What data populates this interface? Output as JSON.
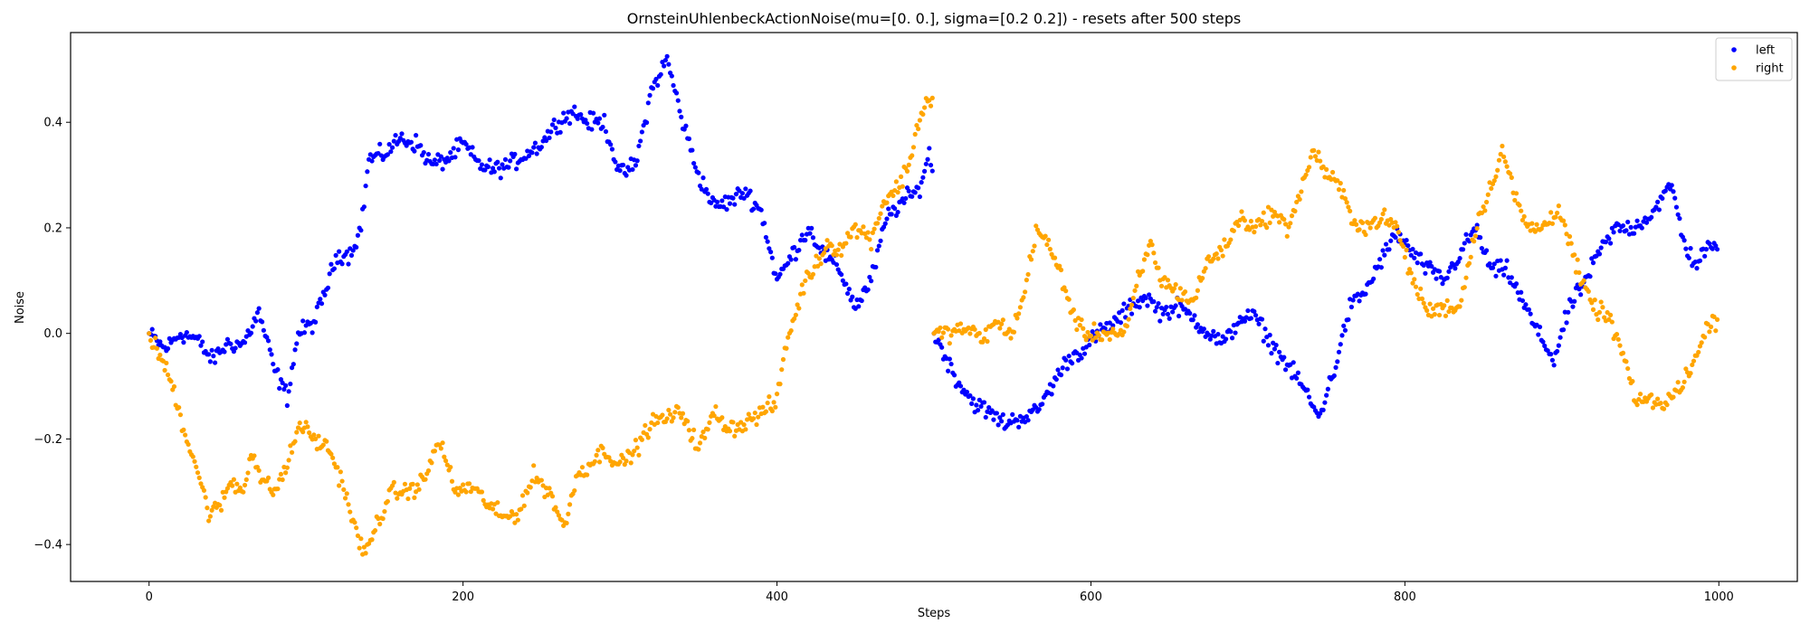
{
  "chart_data": {
    "type": "scatter",
    "title": "OrnsteinUhlenbeckActionNoise(mu=[0. 0.], sigma=[0.2 0.2]) - resets after 500 steps",
    "xlabel": "Steps",
    "ylabel": "Noise",
    "xlim": [
      -50,
      1050
    ],
    "ylim": [
      -0.47,
      0.57
    ],
    "xticks": [
      0,
      200,
      400,
      600,
      800,
      1000
    ],
    "yticks": [
      -0.4,
      -0.2,
      0.0,
      0.2,
      0.4
    ],
    "ytick_labels": [
      "−0.4",
      "−0.2",
      "0.0",
      "0.2",
      "0.4"
    ],
    "grid": false,
    "legend_position": "top-right",
    "reset_step": 500,
    "series": [
      {
        "name": "left",
        "color": "#0000ff",
        "anchors": [
          [
            0,
            0
          ],
          [
            10,
            -0.03
          ],
          [
            20,
            0.0
          ],
          [
            30,
            -0.01
          ],
          [
            40,
            -0.05
          ],
          [
            50,
            -0.02
          ],
          [
            60,
            -0.02
          ],
          [
            70,
            0.04
          ],
          [
            80,
            -0.07
          ],
          [
            88,
            -0.12
          ],
          [
            95,
            0.0
          ],
          [
            105,
            0.02
          ],
          [
            110,
            0.06
          ],
          [
            120,
            0.15
          ],
          [
            128,
            0.15
          ],
          [
            135,
            0.2
          ],
          [
            140,
            0.33
          ],
          [
            150,
            0.34
          ],
          [
            160,
            0.37
          ],
          [
            170,
            0.36
          ],
          [
            180,
            0.32
          ],
          [
            190,
            0.33
          ],
          [
            200,
            0.36
          ],
          [
            210,
            0.32
          ],
          [
            220,
            0.31
          ],
          [
            230,
            0.32
          ],
          [
            240,
            0.34
          ],
          [
            250,
            0.36
          ],
          [
            260,
            0.4
          ],
          [
            270,
            0.42
          ],
          [
            280,
            0.4
          ],
          [
            290,
            0.4
          ],
          [
            300,
            0.3
          ],
          [
            310,
            0.32
          ],
          [
            320,
            0.46
          ],
          [
            330,
            0.52
          ],
          [
            340,
            0.4
          ],
          [
            350,
            0.3
          ],
          [
            360,
            0.24
          ],
          [
            370,
            0.25
          ],
          [
            380,
            0.27
          ],
          [
            390,
            0.23
          ],
          [
            400,
            0.1
          ],
          [
            410,
            0.15
          ],
          [
            420,
            0.2
          ],
          [
            430,
            0.15
          ],
          [
            440,
            0.12
          ],
          [
            450,
            0.05
          ],
          [
            460,
            0.1
          ],
          [
            470,
            0.22
          ],
          [
            480,
            0.25
          ],
          [
            490,
            0.27
          ],
          [
            497,
            0.34
          ],
          [
            499,
            0.31
          ],
          [
            500,
            0.0
          ],
          [
            505,
            -0.03
          ],
          [
            515,
            -0.09
          ],
          [
            525,
            -0.13
          ],
          [
            535,
            -0.15
          ],
          [
            545,
            -0.17
          ],
          [
            555,
            -0.16
          ],
          [
            565,
            -0.15
          ],
          [
            575,
            -0.1
          ],
          [
            585,
            -0.05
          ],
          [
            595,
            -0.03
          ],
          [
            605,
            0.0
          ],
          [
            615,
            0.02
          ],
          [
            625,
            0.05
          ],
          [
            635,
            0.07
          ],
          [
            645,
            0.04
          ],
          [
            655,
            0.05
          ],
          [
            665,
            0.03
          ],
          [
            675,
            0.0
          ],
          [
            685,
            -0.02
          ],
          [
            695,
            0.03
          ],
          [
            705,
            0.03
          ],
          [
            715,
            -0.02
          ],
          [
            725,
            -0.06
          ],
          [
            735,
            -0.1
          ],
          [
            745,
            -0.16
          ],
          [
            755,
            -0.07
          ],
          [
            765,
            0.05
          ],
          [
            775,
            0.08
          ],
          [
            785,
            0.14
          ],
          [
            795,
            0.19
          ],
          [
            805,
            0.15
          ],
          [
            815,
            0.12
          ],
          [
            825,
            0.1
          ],
          [
            835,
            0.15
          ],
          [
            845,
            0.2
          ],
          [
            855,
            0.12
          ],
          [
            865,
            0.12
          ],
          [
            875,
            0.06
          ],
          [
            885,
            0.0
          ],
          [
            895,
            -0.05
          ],
          [
            905,
            0.05
          ],
          [
            915,
            0.1
          ],
          [
            925,
            0.16
          ],
          [
            935,
            0.2
          ],
          [
            945,
            0.2
          ],
          [
            955,
            0.22
          ],
          [
            965,
            0.26
          ],
          [
            970,
            0.28
          ],
          [
            978,
            0.17
          ],
          [
            985,
            0.13
          ],
          [
            992,
            0.16
          ],
          [
            999,
            0.16
          ]
        ]
      },
      {
        "name": "right",
        "color": "#ffa500",
        "anchors": [
          [
            0,
            0
          ],
          [
            8,
            -0.05
          ],
          [
            15,
            -0.1
          ],
          [
            22,
            -0.18
          ],
          [
            30,
            -0.25
          ],
          [
            38,
            -0.34
          ],
          [
            45,
            -0.33
          ],
          [
            52,
            -0.28
          ],
          [
            60,
            -0.3
          ],
          [
            65,
            -0.22
          ],
          [
            72,
            -0.28
          ],
          [
            80,
            -0.3
          ],
          [
            88,
            -0.25
          ],
          [
            96,
            -0.17
          ],
          [
            105,
            -0.2
          ],
          [
            115,
            -0.22
          ],
          [
            125,
            -0.3
          ],
          [
            132,
            -0.38
          ],
          [
            138,
            -0.42
          ],
          [
            145,
            -0.36
          ],
          [
            155,
            -0.3
          ],
          [
            165,
            -0.3
          ],
          [
            175,
            -0.28
          ],
          [
            185,
            -0.2
          ],
          [
            195,
            -0.3
          ],
          [
            205,
            -0.29
          ],
          [
            215,
            -0.32
          ],
          [
            225,
            -0.35
          ],
          [
            235,
            -0.34
          ],
          [
            245,
            -0.27
          ],
          [
            255,
            -0.3
          ],
          [
            265,
            -0.37
          ],
          [
            272,
            -0.27
          ],
          [
            280,
            -0.25
          ],
          [
            290,
            -0.22
          ],
          [
            300,
            -0.25
          ],
          [
            310,
            -0.22
          ],
          [
            320,
            -0.17
          ],
          [
            330,
            -0.16
          ],
          [
            340,
            -0.15
          ],
          [
            350,
            -0.22
          ],
          [
            360,
            -0.15
          ],
          [
            370,
            -0.18
          ],
          [
            380,
            -0.17
          ],
          [
            390,
            -0.15
          ],
          [
            400,
            -0.13
          ],
          [
            405,
            -0.03
          ],
          [
            412,
            0.04
          ],
          [
            418,
            0.1
          ],
          [
            425,
            0.13
          ],
          [
            432,
            0.17
          ],
          [
            440,
            0.16
          ],
          [
            450,
            0.2
          ],
          [
            460,
            0.18
          ],
          [
            468,
            0.25
          ],
          [
            478,
            0.28
          ],
          [
            485,
            0.33
          ],
          [
            490,
            0.4
          ],
          [
            495,
            0.44
          ],
          [
            499,
            0.44
          ],
          [
            500,
            0.0
          ],
          [
            508,
            0.0
          ],
          [
            520,
            0.01
          ],
          [
            530,
            -0.01
          ],
          [
            540,
            0.02
          ],
          [
            550,
            0.0
          ],
          [
            558,
            0.08
          ],
          [
            565,
            0.2
          ],
          [
            572,
            0.17
          ],
          [
            580,
            0.12
          ],
          [
            588,
            0.04
          ],
          [
            595,
            0.0
          ],
          [
            605,
            0.0
          ],
          [
            615,
            0.0
          ],
          [
            622,
            0.0
          ],
          [
            630,
            0.1
          ],
          [
            638,
            0.17
          ],
          [
            645,
            0.1
          ],
          [
            655,
            0.08
          ],
          [
            665,
            0.06
          ],
          [
            675,
            0.14
          ],
          [
            685,
            0.16
          ],
          [
            695,
            0.22
          ],
          [
            705,
            0.2
          ],
          [
            715,
            0.23
          ],
          [
            725,
            0.2
          ],
          [
            735,
            0.28
          ],
          [
            742,
            0.35
          ],
          [
            750,
            0.3
          ],
          [
            758,
            0.28
          ],
          [
            766,
            0.22
          ],
          [
            775,
            0.2
          ],
          [
            785,
            0.22
          ],
          [
            795,
            0.2
          ],
          [
            805,
            0.1
          ],
          [
            815,
            0.04
          ],
          [
            825,
            0.05
          ],
          [
            835,
            0.05
          ],
          [
            845,
            0.2
          ],
          [
            855,
            0.28
          ],
          [
            862,
            0.35
          ],
          [
            870,
            0.26
          ],
          [
            878,
            0.2
          ],
          [
            888,
            0.2
          ],
          [
            898,
            0.24
          ],
          [
            905,
            0.17
          ],
          [
            912,
            0.1
          ],
          [
            920,
            0.05
          ],
          [
            930,
            0.03
          ],
          [
            940,
            -0.05
          ],
          [
            948,
            -0.14
          ],
          [
            955,
            -0.12
          ],
          [
            965,
            -0.14
          ],
          [
            975,
            -0.1
          ],
          [
            985,
            -0.05
          ],
          [
            995,
            0.03
          ],
          [
            999,
            0.02
          ]
        ]
      }
    ]
  }
}
